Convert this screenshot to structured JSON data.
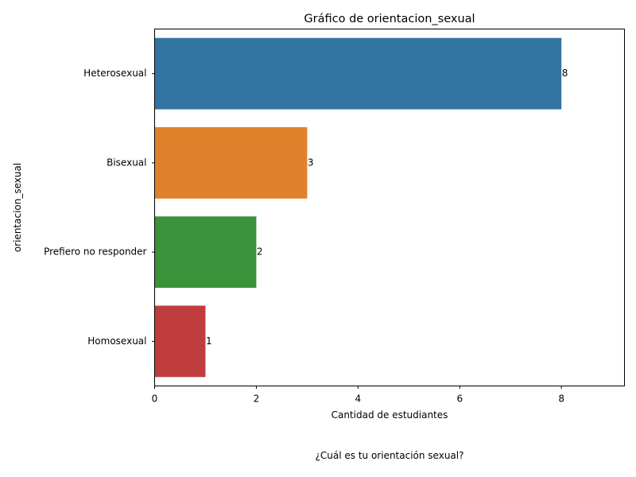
{
  "chart_data": {
    "type": "bar",
    "orientation": "horizontal",
    "title": "Gráfico de orientacion_sexual",
    "xlabel": "Cantidad de estudiantes",
    "ylabel": "orientacion_sexual",
    "categories": [
      "Heterosexual",
      "Bisexual",
      "Prefiero no responder",
      "Homosexual"
    ],
    "values": [
      8,
      3,
      2,
      1
    ],
    "colors": [
      "#3274a1",
      "#e1812c",
      "#3a923a",
      "#c03d3e"
    ],
    "xlim": [
      0,
      9.24
    ],
    "xticks": [
      0,
      2,
      4,
      6,
      8
    ],
    "data_labels": true,
    "grid": false
  },
  "caption": "¿Cuál es tu orientación sexual?"
}
